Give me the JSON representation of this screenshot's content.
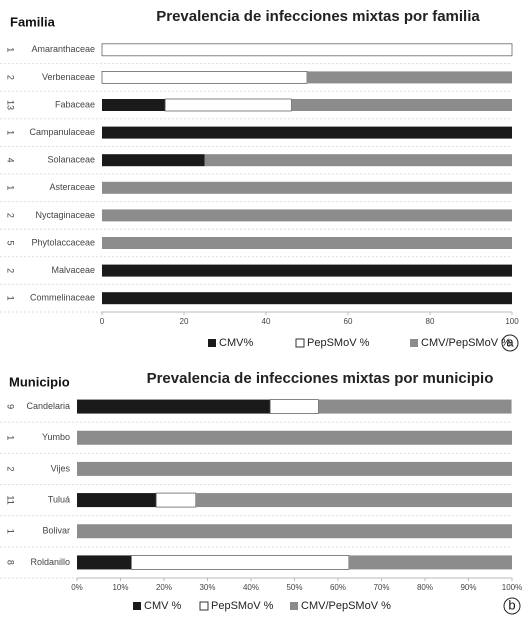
{
  "chart_data": [
    {
      "type": "bar",
      "orientation": "horizontal",
      "stacked": true,
      "title": "Prevalencia de infecciones mixtas por familia",
      "y_label": "Familia",
      "panel_label": "a",
      "categories": [
        "Amaranthaceae",
        "Verbenaceae",
        "Fabaceae",
        "Campanulaceae",
        "Solanaceae",
        "Asteraceae",
        "Nyctaginaceae",
        "Phytolaccaceae",
        "Malvaceae",
        "Commelinaceae"
      ],
      "counts": [
        1,
        2,
        13,
        1,
        4,
        1,
        2,
        5,
        2,
        1
      ],
      "series": [
        {
          "name": "CMV%",
          "color": "#1a1a1a",
          "values": [
            0,
            0,
            15.4,
            100,
            25,
            0,
            0,
            0,
            100,
            100
          ]
        },
        {
          "name": "PepSMoV %",
          "color": "#ffffff",
          "values": [
            100,
            50,
            30.8,
            0,
            0,
            0,
            0,
            0,
            0,
            0
          ]
        },
        {
          "name": "CMV/PepSMoV %",
          "color": "#8c8c8c",
          "values": [
            0,
            50,
            53.8,
            0,
            75,
            100,
            100,
            100,
            0,
            0
          ]
        }
      ],
      "xlim": [
        0,
        100
      ],
      "xticks": [
        0,
        20,
        40,
        60,
        80,
        100
      ]
    },
    {
      "type": "bar",
      "orientation": "horizontal",
      "stacked": true,
      "title": "Prevalencia de infecciones mixtas por municipio",
      "y_label": "Municipio",
      "panel_label": "b",
      "categories": [
        "Candelaria",
        "Yumbo",
        "Vijes",
        "Tuluá",
        "Bolivar",
        "Roldanillo"
      ],
      "counts": [
        9,
        1,
        2,
        11,
        1,
        8
      ],
      "series": [
        {
          "name": "CMV %",
          "color": "#1a1a1a",
          "values": [
            44.4,
            0,
            0,
            18.2,
            0,
            12.5
          ]
        },
        {
          "name": "PepSMoV %",
          "color": "#ffffff",
          "values": [
            11.1,
            0,
            0,
            9.1,
            0,
            50
          ]
        },
        {
          "name": "CMV/PepSMoV %",
          "color": "#8c8c8c",
          "values": [
            44.4,
            100,
            100,
            72.7,
            100,
            37.5
          ]
        }
      ],
      "xlim": [
        0,
        100
      ],
      "xticks": [
        {
          "value": 0,
          "label": "0%"
        },
        {
          "value": 10,
          "label": "10%"
        },
        {
          "value": 20,
          "label": "20%"
        },
        {
          "value": 30,
          "label": "30%"
        },
        {
          "value": 40,
          "label": "40%"
        },
        {
          "value": 50,
          "label": "50%"
        },
        {
          "value": 60,
          "label": "60%"
        },
        {
          "value": 70,
          "label": "70%"
        },
        {
          "value": 80,
          "label": "80%"
        },
        {
          "value": 90,
          "label": "90%"
        },
        {
          "value": 100,
          "label": "100%"
        }
      ]
    }
  ]
}
